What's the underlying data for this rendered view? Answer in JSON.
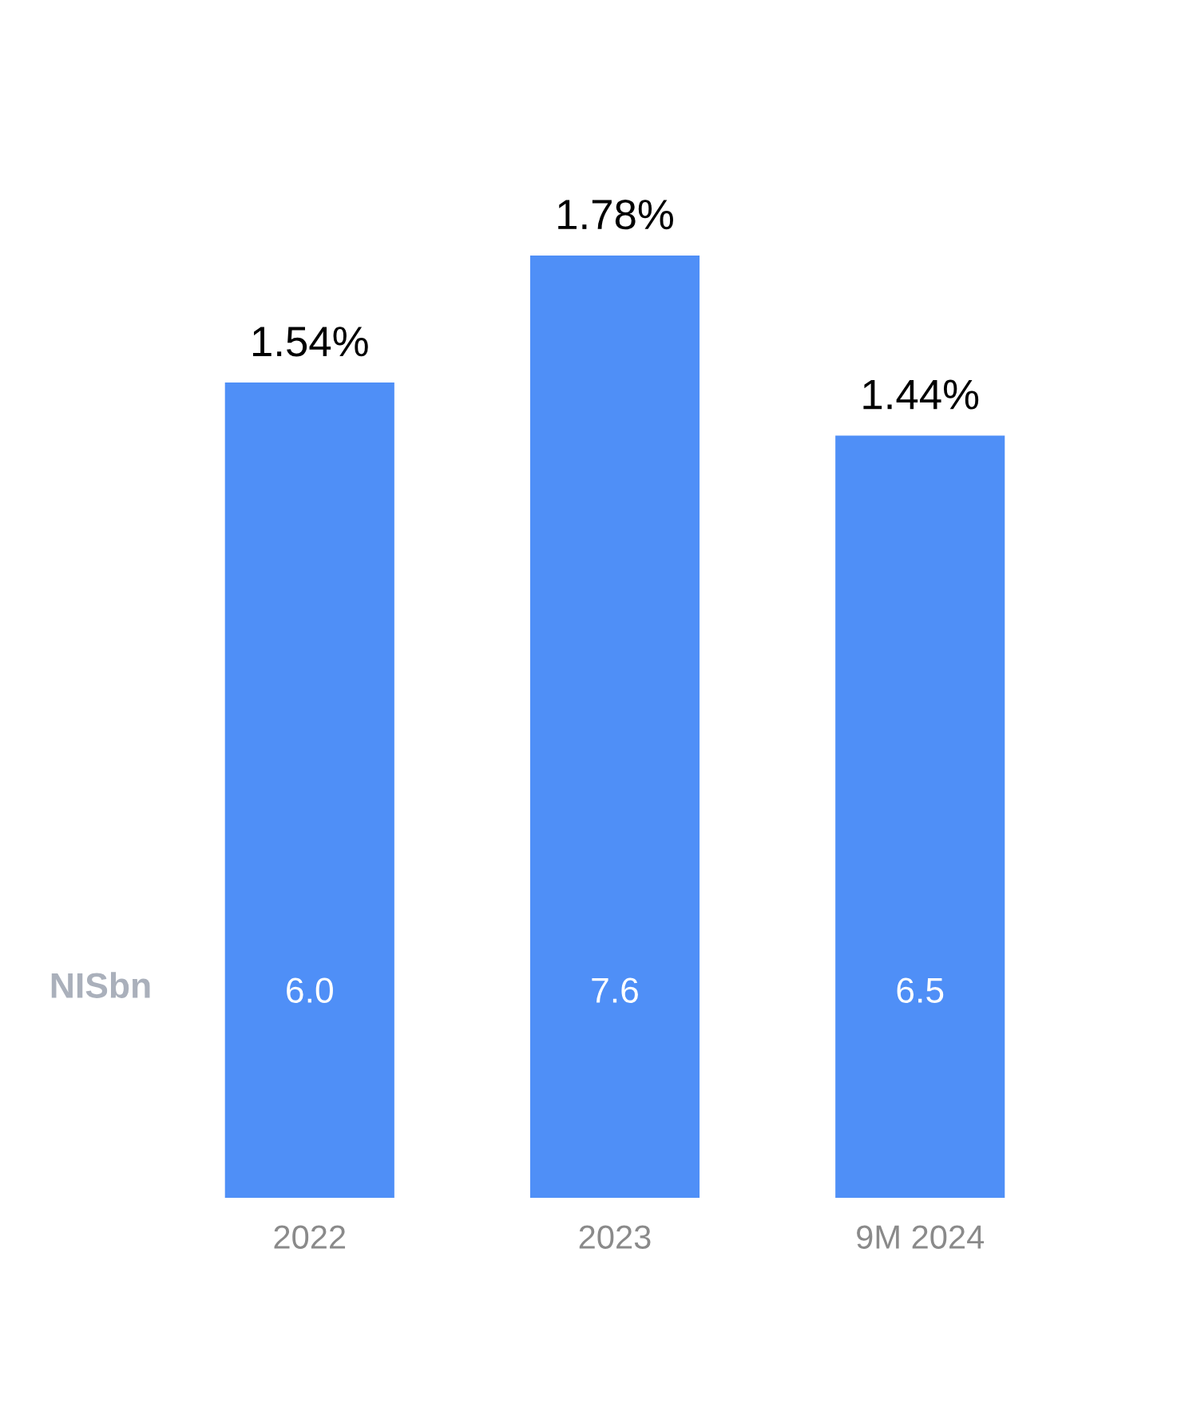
{
  "chart_data": {
    "type": "bar",
    "categories": [
      "2022",
      "2023",
      "9M 2024"
    ],
    "values": [
      1.54,
      1.78,
      1.44
    ],
    "value_labels": [
      "1.54%",
      "1.78%",
      "1.44%"
    ],
    "color": "#4f8ff7",
    "annotations": [
      "NISbn",
      "6.0",
      "7.6",
      "6.5"
    ],
    "grid": false,
    "legend": false
  }
}
